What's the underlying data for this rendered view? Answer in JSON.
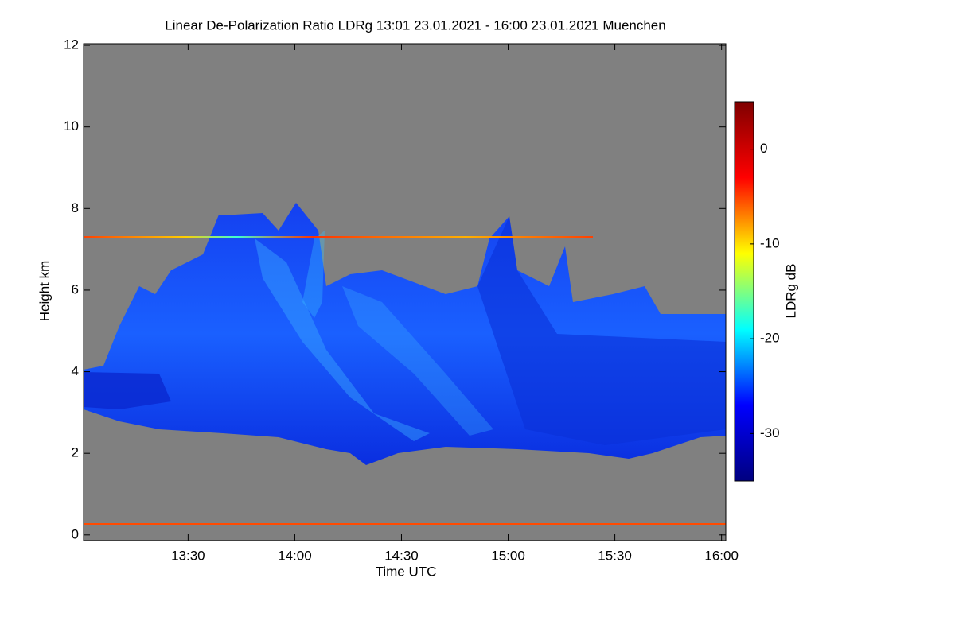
{
  "chart_data": {
    "type": "heatmap",
    "title": "Linear De-Polarization Ratio LDRg   13:01 23.01.2021 - 16:00 23.01.2021 Muenchen",
    "xlabel": "Time UTC",
    "ylabel": "Height km",
    "xlim": [
      13.01,
      16.02
    ],
    "xticks": [
      {
        "value": 13.5,
        "label": "13:30"
      },
      {
        "value": 14,
        "label": "14:00"
      },
      {
        "value": 14.5,
        "label": "14:30"
      },
      {
        "value": 15,
        "label": "15:00"
      },
      {
        "value": 15.5,
        "label": "15:30"
      },
      {
        "value": 16,
        "label": "16:00"
      }
    ],
    "ylim": [
      -0.14,
      12.04
    ],
    "yticks": [
      0,
      2,
      4,
      6,
      8,
      10,
      12
    ],
    "background": "#808080",
    "colorbar": {
      "label": "LDRg dB",
      "lim": [
        -35,
        5
      ],
      "ticks": [
        -30,
        -20,
        -10,
        0
      ],
      "colormap": [
        "#00007f",
        "#0000ff",
        "#00ffff",
        "#ffff00",
        "#ff0000",
        "#7f0000"
      ]
    }
  }
}
